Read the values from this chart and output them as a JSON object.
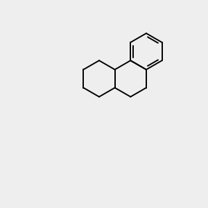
{
  "bg_color": "#eeeeee",
  "bond_color": "#000000",
  "bond_width": 1.4,
  "N_color": "#0000cc",
  "O_color": "#cc0000",
  "H_color": "#4a9a4a",
  "font_size": 8.5
}
